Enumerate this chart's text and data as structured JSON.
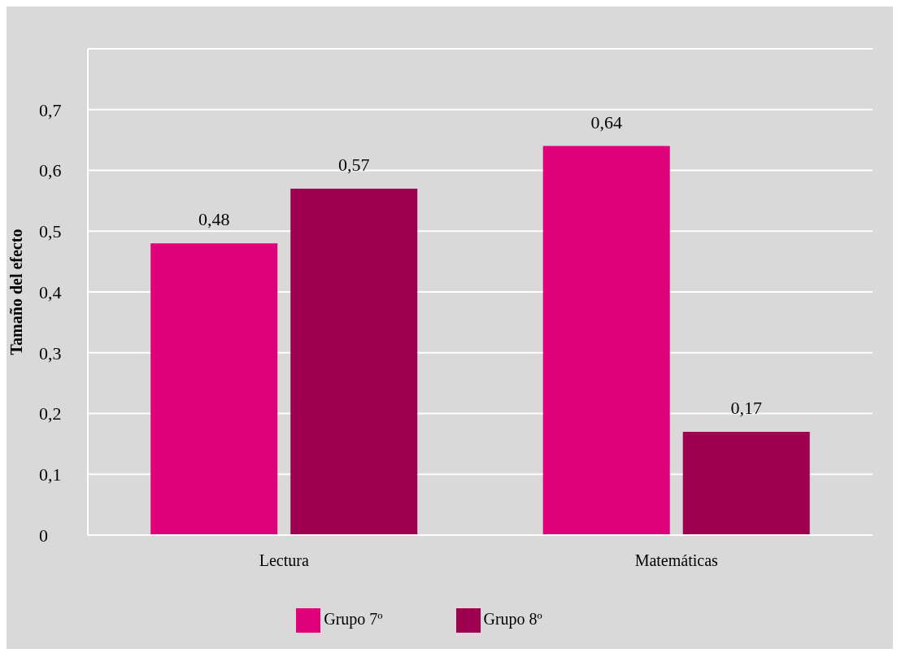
{
  "chart_data": {
    "type": "bar",
    "ylabel": "Tamaño del efecto",
    "categories": [
      "Lectura",
      "Matemáticas"
    ],
    "series": [
      {
        "name": "Grupo 7º",
        "color": "#e0007a",
        "values": [
          0.48,
          0.64
        ],
        "value_labels": [
          "0,48",
          "0,64"
        ]
      },
      {
        "name": "Grupo 8º",
        "color": "#a00050",
        "values": [
          0.57,
          0.17
        ],
        "value_labels": [
          "0,57",
          "0,17"
        ]
      }
    ],
    "ylim": [
      0,
      0.8
    ],
    "yticks": [
      0,
      {
        "value": 0.1,
        "label": "0,1"
      },
      {
        "value": 0.2,
        "label": "0,2"
      },
      {
        "value": 0.3,
        "label": "0,3"
      },
      {
        "value": 0.4,
        "label": "0,4"
      },
      {
        "value": 0.5,
        "label": "0,5"
      },
      {
        "value": 0.6,
        "label": "0,6"
      },
      {
        "value": 0.7,
        "label": "0,7"
      }
    ],
    "grid": "y",
    "legend": "bottom"
  }
}
